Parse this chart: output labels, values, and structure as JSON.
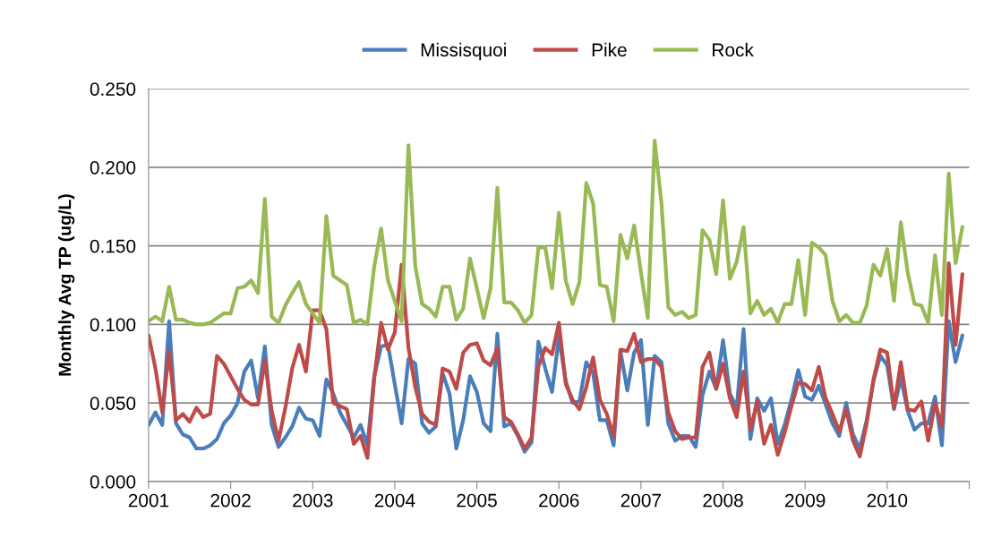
{
  "chart_data": {
    "type": "line",
    "ylabel": "Monthly Avg TP (ug/L)",
    "x": [
      "2001-01",
      "2001-02",
      "2001-03",
      "2001-04",
      "2001-05",
      "2001-06",
      "2001-07",
      "2001-08",
      "2001-09",
      "2001-10",
      "2001-11",
      "2001-12",
      "2002-01",
      "2002-02",
      "2002-03",
      "2002-04",
      "2002-05",
      "2002-06",
      "2002-07",
      "2002-08",
      "2002-09",
      "2002-10",
      "2002-11",
      "2002-12",
      "2003-01",
      "2003-02",
      "2003-03",
      "2003-04",
      "2003-05",
      "2003-06",
      "2003-07",
      "2003-08",
      "2003-09",
      "2003-10",
      "2003-11",
      "2003-12",
      "2004-01",
      "2004-02",
      "2004-03",
      "2004-04",
      "2004-05",
      "2004-06",
      "2004-07",
      "2004-08",
      "2004-09",
      "2004-10",
      "2004-11",
      "2004-12",
      "2005-01",
      "2005-02",
      "2005-03",
      "2005-04",
      "2005-05",
      "2005-06",
      "2005-07",
      "2005-08",
      "2005-09",
      "2005-10",
      "2005-11",
      "2005-12",
      "2006-01",
      "2006-02",
      "2006-03",
      "2006-04",
      "2006-05",
      "2006-06",
      "2006-07",
      "2006-08",
      "2006-09",
      "2006-10",
      "2006-11",
      "2006-12",
      "2007-01",
      "2007-02",
      "2007-03",
      "2007-04",
      "2007-05",
      "2007-06",
      "2007-07",
      "2007-08",
      "2007-09",
      "2007-10",
      "2007-11",
      "2007-12",
      "2008-01",
      "2008-02",
      "2008-03",
      "2008-04",
      "2008-05",
      "2008-06",
      "2008-07",
      "2008-08",
      "2008-09",
      "2008-10",
      "2008-11",
      "2008-12",
      "2009-01",
      "2009-02",
      "2009-03",
      "2009-04",
      "2009-05",
      "2009-06",
      "2009-07",
      "2009-08",
      "2009-09",
      "2009-10",
      "2009-11",
      "2009-12",
      "2010-01",
      "2010-02",
      "2010-03",
      "2010-04",
      "2010-05",
      "2010-06",
      "2010-07",
      "2010-08",
      "2010-09",
      "2010-10",
      "2010-11",
      "2010-12"
    ],
    "series": [
      {
        "name": "Missisquoi",
        "color": "#4a7ebb",
        "values": [
          0.036,
          0.044,
          0.036,
          0.102,
          0.037,
          0.03,
          0.028,
          0.021,
          0.021,
          0.023,
          0.027,
          0.037,
          0.042,
          0.05,
          0.07,
          0.077,
          0.053,
          0.086,
          0.036,
          0.022,
          0.028,
          0.035,
          0.047,
          0.04,
          0.039,
          0.029,
          0.065,
          0.056,
          0.044,
          0.036,
          0.028,
          0.036,
          0.023,
          0.067,
          0.086,
          0.087,
          0.062,
          0.037,
          0.078,
          0.075,
          0.037,
          0.031,
          0.035,
          0.069,
          0.056,
          0.021,
          0.039,
          0.067,
          0.057,
          0.037,
          0.032,
          0.094,
          0.035,
          0.037,
          0.029,
          0.019,
          0.025,
          0.089,
          0.072,
          0.057,
          0.092,
          0.064,
          0.05,
          0.051,
          0.076,
          0.069,
          0.039,
          0.039,
          0.023,
          0.083,
          0.058,
          0.082,
          0.09,
          0.036,
          0.08,
          0.076,
          0.037,
          0.026,
          0.029,
          0.029,
          0.022,
          0.055,
          0.07,
          0.059,
          0.09,
          0.056,
          0.047,
          0.097,
          0.027,
          0.053,
          0.045,
          0.053,
          0.024,
          0.036,
          0.052,
          0.071,
          0.054,
          0.052,
          0.061,
          0.049,
          0.037,
          0.029,
          0.05,
          0.03,
          0.021,
          0.039,
          0.064,
          0.08,
          0.074,
          0.046,
          0.066,
          0.045,
          0.033,
          0.037,
          0.037,
          0.054,
          0.023,
          0.102,
          0.076,
          0.093
        ]
      },
      {
        "name": "Pike",
        "color": "#be4b48",
        "values": [
          0.093,
          0.072,
          0.044,
          0.083,
          0.039,
          0.043,
          0.038,
          0.047,
          0.041,
          0.043,
          0.08,
          0.075,
          0.067,
          0.059,
          0.052,
          0.049,
          0.049,
          0.077,
          0.045,
          0.026,
          0.047,
          0.072,
          0.087,
          0.07,
          0.109,
          0.109,
          0.097,
          0.05,
          0.048,
          0.046,
          0.024,
          0.029,
          0.015,
          0.066,
          0.101,
          0.084,
          0.095,
          0.138,
          0.085,
          0.06,
          0.043,
          0.038,
          0.036,
          0.072,
          0.07,
          0.059,
          0.082,
          0.087,
          0.088,
          0.077,
          0.074,
          0.085,
          0.041,
          0.038,
          0.03,
          0.021,
          0.028,
          0.073,
          0.085,
          0.081,
          0.101,
          0.062,
          0.052,
          0.046,
          0.06,
          0.079,
          0.052,
          0.043,
          0.029,
          0.084,
          0.083,
          0.094,
          0.076,
          0.078,
          0.078,
          0.073,
          0.044,
          0.032,
          0.027,
          0.028,
          0.028,
          0.073,
          0.082,
          0.059,
          0.075,
          0.053,
          0.041,
          0.07,
          0.033,
          0.051,
          0.024,
          0.036,
          0.017,
          0.031,
          0.048,
          0.063,
          0.062,
          0.058,
          0.073,
          0.053,
          0.043,
          0.032,
          0.046,
          0.026,
          0.016,
          0.037,
          0.065,
          0.084,
          0.082,
          0.047,
          0.076,
          0.046,
          0.045,
          0.051,
          0.026,
          0.05,
          0.035,
          0.139,
          0.087,
          0.132
        ]
      },
      {
        "name": "Rock",
        "color": "#98b954",
        "values": [
          0.102,
          0.105,
          0.102,
          0.124,
          0.103,
          0.103,
          0.101,
          0.1,
          0.1,
          0.101,
          0.104,
          0.107,
          0.107,
          0.123,
          0.124,
          0.128,
          0.12,
          0.18,
          0.105,
          0.101,
          0.112,
          0.12,
          0.127,
          0.113,
          0.107,
          0.101,
          0.169,
          0.131,
          0.128,
          0.125,
          0.101,
          0.103,
          0.1,
          0.137,
          0.161,
          0.128,
          0.115,
          0.102,
          0.214,
          0.137,
          0.113,
          0.11,
          0.105,
          0.124,
          0.124,
          0.103,
          0.11,
          0.142,
          0.123,
          0.104,
          0.123,
          0.187,
          0.114,
          0.114,
          0.109,
          0.101,
          0.106,
          0.149,
          0.149,
          0.123,
          0.171,
          0.128,
          0.113,
          0.127,
          0.19,
          0.177,
          0.125,
          0.124,
          0.102,
          0.157,
          0.142,
          0.163,
          0.133,
          0.104,
          0.217,
          0.177,
          0.111,
          0.106,
          0.108,
          0.104,
          0.106,
          0.16,
          0.154,
          0.132,
          0.179,
          0.129,
          0.14,
          0.162,
          0.107,
          0.115,
          0.106,
          0.11,
          0.101,
          0.113,
          0.113,
          0.141,
          0.106,
          0.152,
          0.149,
          0.144,
          0.115,
          0.102,
          0.106,
          0.101,
          0.101,
          0.112,
          0.138,
          0.131,
          0.148,
          0.115,
          0.165,
          0.133,
          0.113,
          0.112,
          0.101,
          0.144,
          0.106,
          0.196,
          0.139,
          0.162
        ]
      }
    ],
    "xlim": [
      "2001-01",
      "2011-01"
    ],
    "xticks": [
      "2001",
      "2002",
      "2003",
      "2004",
      "2005",
      "2006",
      "2007",
      "2008",
      "2009",
      "2010",
      {
        "value": "2011",
        "label": null
      }
    ],
    "ylim": [
      0,
      0.25
    ],
    "yticks": [
      {
        "value": 0,
        "label": "0.000"
      },
      {
        "value": 0.05,
        "label": "0.050"
      },
      {
        "value": 0.1,
        "label": "0.100"
      },
      {
        "value": 0.15,
        "label": "0.150"
      },
      {
        "value": 0.2,
        "label": "0.200"
      },
      {
        "value": 0.25,
        "label": "0.250"
      }
    ],
    "grid": "y",
    "legend": "top",
    "marker": "none",
    "line_style": "solid"
  }
}
